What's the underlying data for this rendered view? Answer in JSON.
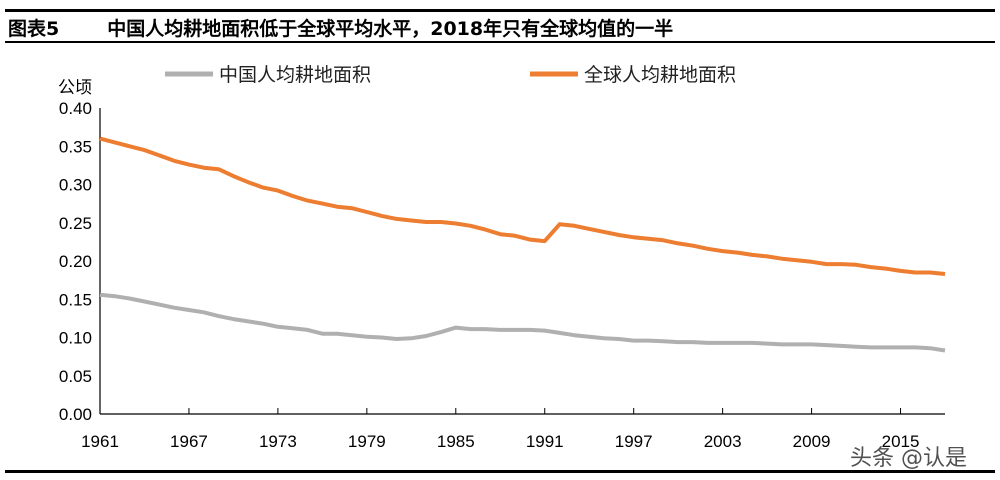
{
  "header": {
    "figure_no": "图表5",
    "title": "中国人均耕地面积低于全球平均水平，2018年只有全球均值的一半"
  },
  "watermark": "头条 @认是",
  "chart_data": {
    "type": "line",
    "title": "",
    "ylabel": "公顷",
    "xlabel": "",
    "ylim": [
      0,
      0.4
    ],
    "xlim": [
      1961,
      2018
    ],
    "yticks": [
      "0.00",
      "0.05",
      "0.10",
      "0.15",
      "0.20",
      "0.25",
      "0.30",
      "0.35",
      "0.40"
    ],
    "xticks": [
      "1961",
      "1967",
      "1973",
      "1979",
      "1985",
      "1991",
      "1997",
      "2003",
      "2009",
      "2015"
    ],
    "legend_position": "top",
    "grid": false,
    "x_start": 1961,
    "series": [
      {
        "name": "中国人均耕地面积",
        "color": "#b0b0b0",
        "values": [
          0.156,
          0.154,
          0.151,
          0.147,
          0.143,
          0.139,
          0.136,
          0.133,
          0.128,
          0.124,
          0.121,
          0.118,
          0.114,
          0.112,
          0.11,
          0.105,
          0.105,
          0.103,
          0.101,
          0.1,
          0.098,
          0.099,
          0.102,
          0.107,
          0.113,
          0.111,
          0.111,
          0.11,
          0.11,
          0.11,
          0.109,
          0.106,
          0.103,
          0.101,
          0.099,
          0.098,
          0.096,
          0.096,
          0.095,
          0.094,
          0.094,
          0.093,
          0.093,
          0.093,
          0.093,
          0.092,
          0.091,
          0.091,
          0.091,
          0.09,
          0.089,
          0.088,
          0.087,
          0.087,
          0.087,
          0.087,
          0.086,
          0.083
        ]
      },
      {
        "name": "全球人均耕地面积",
        "color": "#ed7d31",
        "values": [
          0.36,
          0.355,
          0.35,
          0.345,
          0.338,
          0.331,
          0.326,
          0.322,
          0.32,
          0.311,
          0.303,
          0.296,
          0.292,
          0.285,
          0.279,
          0.275,
          0.271,
          0.269,
          0.264,
          0.259,
          0.255,
          0.253,
          0.251,
          0.251,
          0.249,
          0.246,
          0.241,
          0.235,
          0.233,
          0.228,
          0.226,
          0.248,
          0.246,
          0.242,
          0.238,
          0.234,
          0.231,
          0.229,
          0.227,
          0.223,
          0.22,
          0.216,
          0.213,
          0.211,
          0.208,
          0.206,
          0.203,
          0.201,
          0.199,
          0.196,
          0.196,
          0.195,
          0.192,
          0.19,
          0.187,
          0.185,
          0.185,
          0.183
        ]
      }
    ]
  }
}
